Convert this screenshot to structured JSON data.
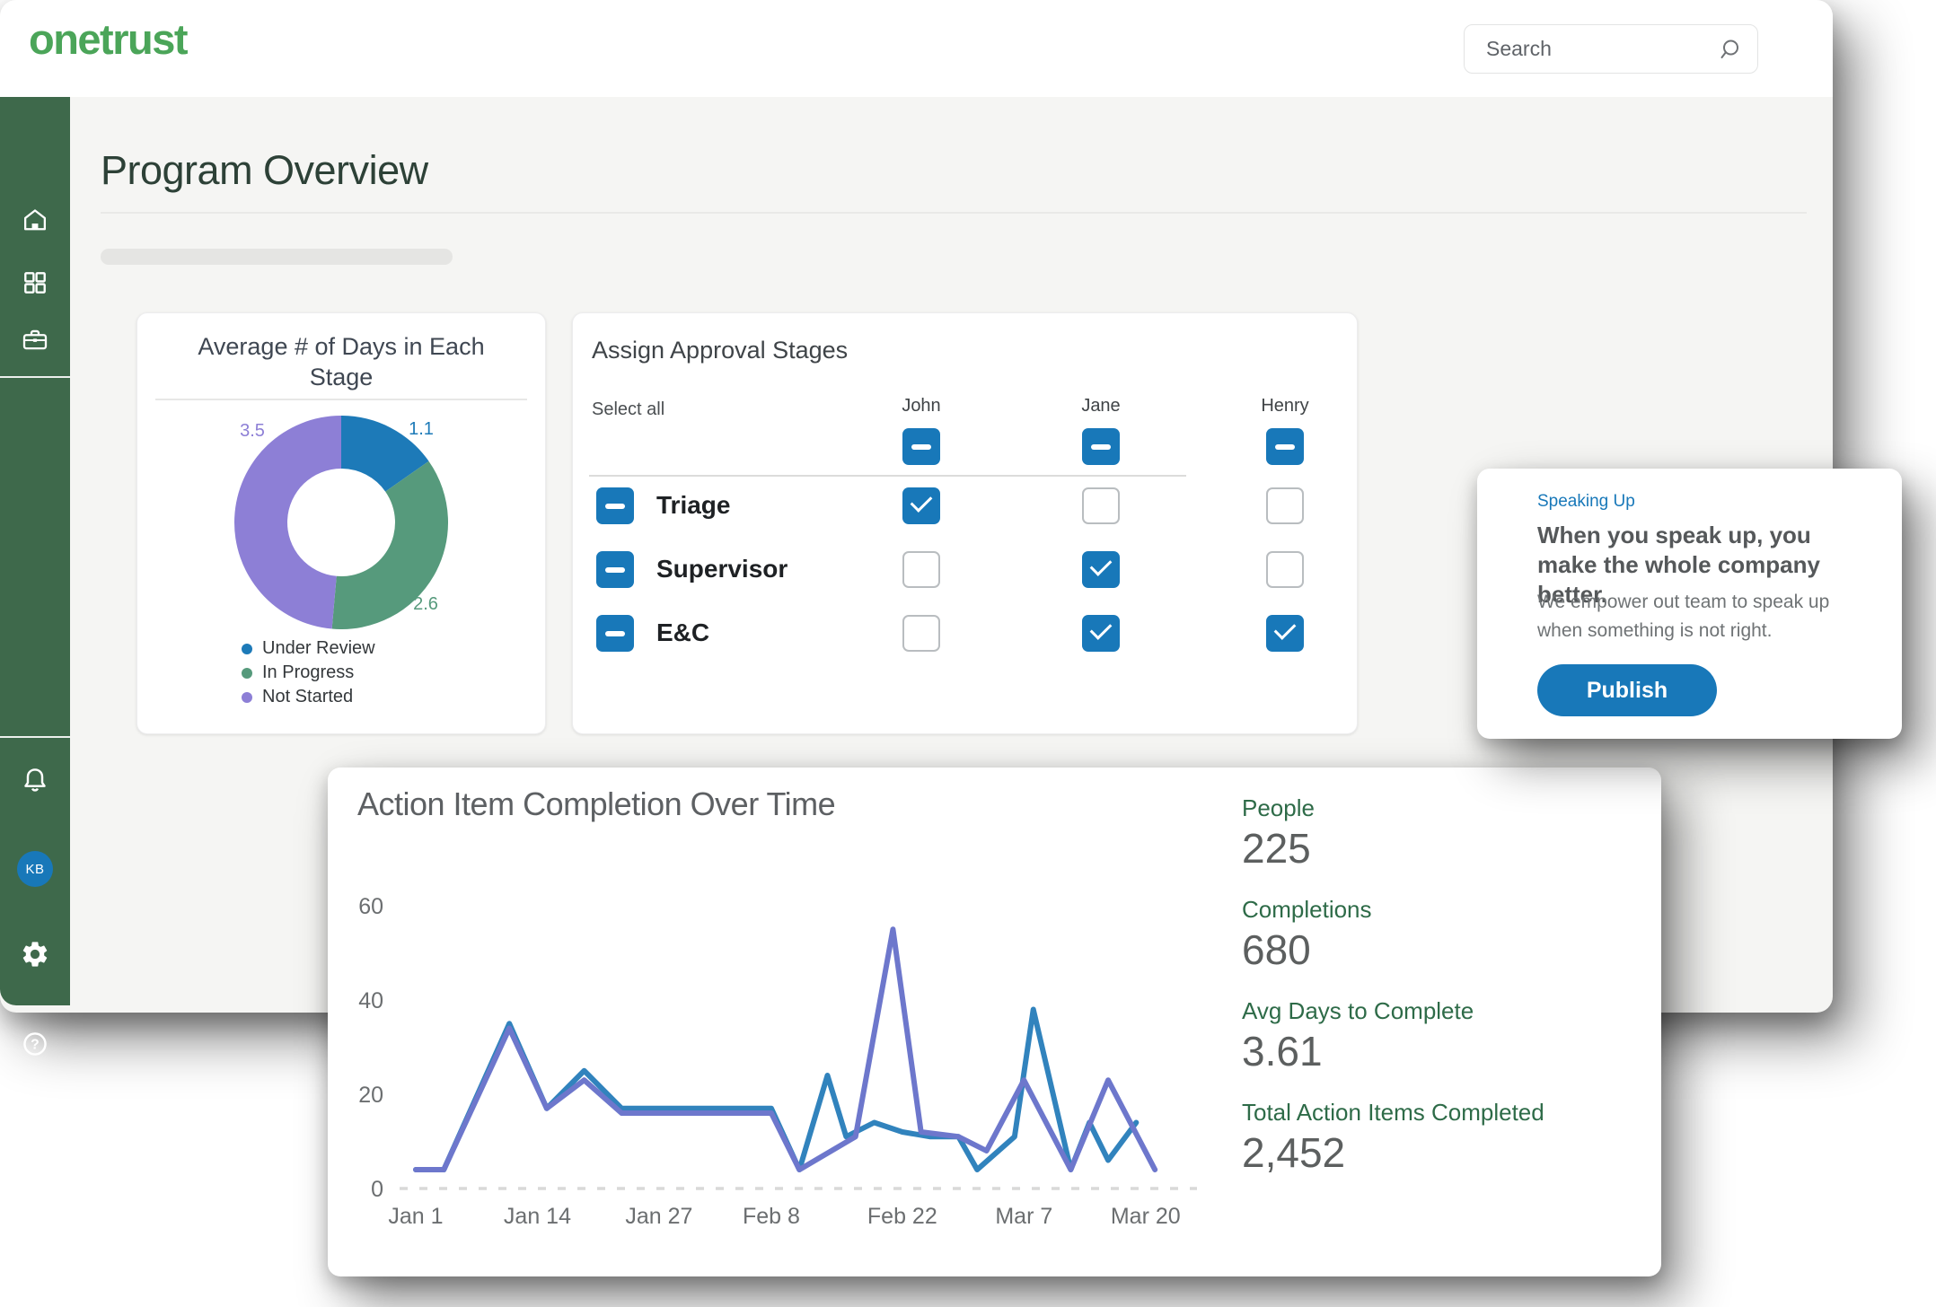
{
  "header": {
    "logo": "onetrust",
    "search_placeholder": "Search"
  },
  "sidebar": {
    "avatar_initials": "KB",
    "items": [
      "home",
      "apps-grid",
      "briefcase",
      "notifications",
      "profile",
      "settings",
      "help"
    ]
  },
  "page": {
    "title": "Program Overview"
  },
  "approval_card": {
    "title": "Assign Approval Stages",
    "select_all_label": "Select all",
    "columns": [
      "John",
      "Jane",
      "Henry"
    ],
    "rows": [
      {
        "label": "Triage",
        "checks": [
          true,
          false,
          false
        ]
      },
      {
        "label": "Supervisor",
        "checks": [
          false,
          true,
          false
        ]
      },
      {
        "label": "E&C",
        "checks": [
          false,
          true,
          true
        ]
      }
    ]
  },
  "speaking_card": {
    "eyebrow": "Speaking Up",
    "heading": "When you speak up, you make the whole company better.",
    "body": "We empower out team to speak up when something is not right.",
    "button_label": "Publish"
  },
  "completion_card": {
    "title": "Action Item Completion Over Time",
    "stats": [
      {
        "label": "People",
        "value": "225"
      },
      {
        "label": "Completions",
        "value": "680"
      },
      {
        "label": "Avg Days to Complete",
        "value": "3.61"
      },
      {
        "label": "Total Action Items Completed",
        "value": "2,452"
      }
    ]
  },
  "chart_data": [
    {
      "type": "pie",
      "subtype": "donut",
      "title": "Average # of Days in Each Stage",
      "labels": [
        "Under Review",
        "In Progress",
        "Not Started"
      ],
      "values": [
        1.1,
        2.6,
        3.5
      ],
      "colors": [
        "#1d7ab8",
        "#569a7c",
        "#8d7fd6"
      ],
      "inner_radius_ratio": 0.5,
      "legend_position": "bottom",
      "start_angle_deg": -90,
      "direction": "clockwise"
    },
    {
      "type": "line",
      "title": "Action Item Completion Over Time",
      "xlabel": "",
      "ylabel": "",
      "ylim": [
        0,
        60
      ],
      "y_ticks": [
        0,
        20,
        40,
        60
      ],
      "x_tick_days": [
        0,
        13,
        26,
        38,
        52,
        65,
        78
      ],
      "x_tick_labels": [
        "Jan 1",
        "Jan 14",
        "Jan 27",
        "Feb 8",
        "Feb 22",
        "Mar 7",
        "Mar 20"
      ],
      "grid": "dashed zero baseline only",
      "legend_position": "none",
      "series": [
        {
          "name": "teal-line",
          "color": "#3183bd",
          "points": [
            [
              0,
              4
            ],
            [
              3,
              4
            ],
            [
              10,
              35
            ],
            [
              14,
              17
            ],
            [
              18,
              25
            ],
            [
              22,
              17
            ],
            [
              38,
              17
            ],
            [
              41,
              4
            ],
            [
              44,
              24
            ],
            [
              46,
              11
            ],
            [
              49,
              14
            ],
            [
              52,
              12
            ],
            [
              55,
              11
            ],
            [
              58,
              11
            ],
            [
              60,
              4
            ],
            [
              64,
              11
            ],
            [
              66,
              38
            ],
            [
              70,
              4
            ],
            [
              72,
              14
            ],
            [
              74,
              6
            ],
            [
              77,
              14
            ]
          ]
        },
        {
          "name": "indigo-line",
          "color": "#6d77cc",
          "points": [
            [
              0,
              4
            ],
            [
              3,
              4
            ],
            [
              10,
              34
            ],
            [
              14,
              17
            ],
            [
              18,
              23
            ],
            [
              22,
              16
            ],
            [
              38,
              16
            ],
            [
              41,
              4
            ],
            [
              47,
              11
            ],
            [
              51,
              55
            ],
            [
              54,
              12
            ],
            [
              58,
              11
            ],
            [
              61,
              8
            ],
            [
              65,
              23
            ],
            [
              70,
              4
            ],
            [
              74,
              23
            ],
            [
              79,
              4
            ]
          ]
        }
      ]
    }
  ],
  "colors": {
    "accent_blue": "#1878b9",
    "sidebar_green": "#3e694b",
    "logo_green": "#4ba559",
    "stat_label_green": "#2e6b48",
    "page_title_green": "#2d4137"
  }
}
